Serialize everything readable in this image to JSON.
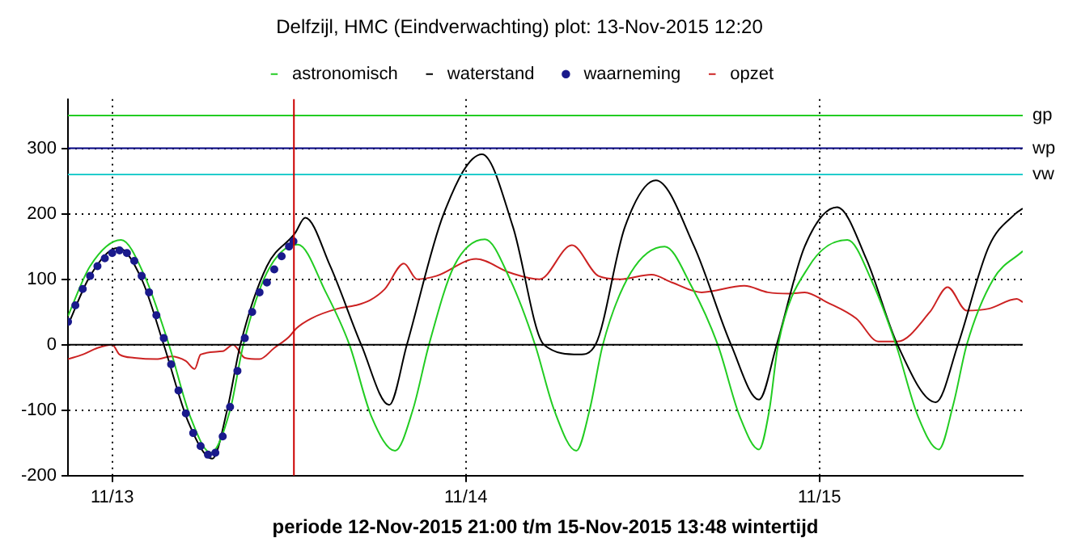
{
  "chart_data": {
    "type": "line",
    "title": "Delfzijl, HMC (Eindverwachting) plot: 13-Nov-2015 12:20",
    "xlabel": "periode 12-Nov-2015 21:00 t/m 15-Nov-2015 13:48 wintertijd",
    "xlim": [
      "2015-11-12T21:00",
      "2015-11-15T13:48"
    ],
    "xticks": [
      {
        "value": "2015-11-13T00:00",
        "label": "11/13"
      },
      {
        "value": "2015-11-14T00:00",
        "label": "11/14"
      },
      {
        "value": "2015-11-15T00:00",
        "label": "11/15"
      }
    ],
    "ylim": [
      -200,
      375
    ],
    "yticks": [
      -200,
      -100,
      0,
      100,
      200,
      300
    ],
    "grid": true,
    "legend": "top",
    "line_style": "solid",
    "series": [
      {
        "name": "astronomisch",
        "color": "#22cc22",
        "x": [
          "2015-11-12T21:00",
          "2015-11-12T22:30",
          "2015-11-13T00:36",
          "2015-11-13T02:12",
          "2015-11-13T03:51",
          "2015-11-13T05:18",
          "2015-11-13T06:42",
          "2015-11-13T08:00",
          "2015-11-13T08:54",
          "2015-11-13T10:30",
          "2015-11-13T12:36",
          "2015-11-13T14:30",
          "2015-11-13T16:06",
          "2015-11-13T17:36",
          "2015-11-13T19:12",
          "2015-11-13T20:24",
          "2015-11-13T21:30",
          "2015-11-13T23:12",
          "2015-11-14T01:18",
          "2015-11-14T03:00",
          "2015-11-14T04:42",
          "2015-11-14T06:00",
          "2015-11-14T07:30",
          "2015-11-14T08:24",
          "2015-11-14T09:18",
          "2015-11-14T11:12",
          "2015-11-14T13:30",
          "2015-11-14T15:18",
          "2015-11-14T17:06",
          "2015-11-14T18:36",
          "2015-11-14T19:54",
          "2015-11-14T20:36",
          "2015-11-14T21:12",
          "2015-11-14T23:18",
          "2015-11-15T01:54",
          "2015-11-15T03:36",
          "2015-11-15T05:12",
          "2015-11-15T06:42",
          "2015-11-15T08:06",
          "2015-11-15T09:06",
          "2015-11-15T10:00",
          "2015-11-15T11:48",
          "2015-11-15T13:48"
        ],
        "values": [
          44,
          120,
          160,
          105,
          0,
          -110,
          -165,
          -100,
          0,
          110,
          153,
          80,
          0,
          -110,
          -162,
          -100,
          0,
          120,
          161,
          100,
          0,
          -100,
          -162,
          -100,
          0,
          110,
          150,
          90,
          0,
          -110,
          -160,
          -100,
          0,
          120,
          160,
          95,
          0,
          -110,
          -160,
          -90,
          0,
          100,
          143
        ]
      },
      {
        "name": "waterstand",
        "color": "#000000",
        "x": [
          "2015-11-12T21:00",
          "2015-11-12T22:30",
          "2015-11-13T00:24",
          "2015-11-13T02:00",
          "2015-11-13T03:30",
          "2015-11-13T05:12",
          "2015-11-13T06:48",
          "2015-11-13T07:48",
          "2015-11-13T08:42",
          "2015-11-13T10:30",
          "2015-11-13T12:24",
          "2015-11-13T13:06",
          "2015-11-13T14:48",
          "2015-11-13T16:54",
          "2015-11-13T18:48",
          "2015-11-13T20:00",
          "2015-11-13T22:30",
          "2015-11-14T01:06",
          "2015-11-14T03:12",
          "2015-11-14T05:18",
          "2015-11-14T07:42",
          "2015-11-14T08:48",
          "2015-11-14T10:48",
          "2015-11-14T12:54",
          "2015-11-14T15:30",
          "2015-11-14T18:00",
          "2015-11-14T19:54",
          "2015-11-14T21:06",
          "2015-11-14T23:00",
          "2015-11-15T01:12",
          "2015-11-15T03:12",
          "2015-11-15T05:18",
          "2015-11-15T07:54",
          "2015-11-15T09:24",
          "2015-11-15T11:30",
          "2015-11-15T13:18",
          "2015-11-15T13:48"
        ],
        "values": [
          30,
          105,
          148,
          100,
          0,
          -120,
          -174,
          -100,
          0,
          120,
          170,
          194,
          120,
          0,
          -92,
          0,
          200,
          291,
          180,
          0,
          -15,
          0,
          180,
          251,
          150,
          0,
          -84,
          0,
          150,
          210,
          130,
          0,
          -88,
          0,
          150,
          200,
          208
        ]
      },
      {
        "name": "waarneming",
        "type": "scatter",
        "marker": "circle",
        "color": "#1a1a8c",
        "x": [
          "2015-11-12T21:00",
          "2015-11-12T21:30",
          "2015-11-12T22:00",
          "2015-11-12T22:30",
          "2015-11-12T23:00",
          "2015-11-12T23:30",
          "2015-11-13T00:00",
          "2015-11-13T00:30",
          "2015-11-13T01:00",
          "2015-11-13T01:30",
          "2015-11-13T02:00",
          "2015-11-13T02:30",
          "2015-11-13T03:00",
          "2015-11-13T03:30",
          "2015-11-13T04:00",
          "2015-11-13T04:30",
          "2015-11-13T05:00",
          "2015-11-13T05:30",
          "2015-11-13T06:00",
          "2015-11-13T06:30",
          "2015-11-13T07:00",
          "2015-11-13T07:30",
          "2015-11-13T08:00",
          "2015-11-13T08:30",
          "2015-11-13T09:00",
          "2015-11-13T09:30",
          "2015-11-13T10:00",
          "2015-11-13T10:30",
          "2015-11-13T11:00",
          "2015-11-13T11:30",
          "2015-11-13T12:00",
          "2015-11-13T12:18"
        ],
        "values": [
          35,
          60,
          85,
          105,
          120,
          132,
          140,
          144,
          140,
          128,
          105,
          80,
          45,
          10,
          -30,
          -70,
          -105,
          -135,
          -155,
          -168,
          -165,
          -140,
          -95,
          -40,
          10,
          50,
          80,
          95,
          115,
          135,
          150,
          158
        ]
      },
      {
        "name": "opzet",
        "color": "#cc2222",
        "x": [
          "2015-11-12T21:00",
          "2015-11-12T22:00",
          "2015-11-12T23:00",
          "2015-11-13T00:00",
          "2015-11-13T00:30",
          "2015-11-13T01:30",
          "2015-11-13T03:00",
          "2015-11-13T04:00",
          "2015-11-13T05:00",
          "2015-11-13T05:36",
          "2015-11-13T06:00",
          "2015-11-13T07:30",
          "2015-11-13T08:12",
          "2015-11-13T09:00",
          "2015-11-13T10:00",
          "2015-11-13T11:00",
          "2015-11-13T12:00",
          "2015-11-13T12:30",
          "2015-11-13T13:30",
          "2015-11-13T15:18",
          "2015-11-13T16:30",
          "2015-11-13T17:30",
          "2015-11-13T18:30",
          "2015-11-13T19:48",
          "2015-11-13T20:42",
          "2015-11-13T22:00",
          "2015-11-14T00:42",
          "2015-11-14T03:00",
          "2015-11-14T05:00",
          "2015-11-14T07:12",
          "2015-11-14T09:00",
          "2015-11-14T10:30",
          "2015-11-14T12:36",
          "2015-11-14T14:00",
          "2015-11-14T16:00",
          "2015-11-14T18:54",
          "2015-11-14T20:30",
          "2015-11-14T22:00",
          "2015-11-14T23:00",
          "2015-11-15T00:30",
          "2015-11-15T02:30",
          "2015-11-15T04:00",
          "2015-11-15T05:18",
          "2015-11-15T07:30",
          "2015-11-15T08:42",
          "2015-11-15T10:00",
          "2015-11-15T11:30",
          "2015-11-15T13:24",
          "2015-11-15T13:48"
        ],
        "values": [
          -22,
          -15,
          -5,
          0,
          -15,
          -20,
          -22,
          -18,
          -25,
          -37,
          -15,
          -10,
          0,
          -20,
          -22,
          -5,
          12,
          25,
          40,
          55,
          60,
          68,
          85,
          124,
          100,
          105,
          131,
          110,
          100,
          152,
          105,
          100,
          107,
          95,
          80,
          90,
          80,
          78,
          80,
          65,
          40,
          5,
          5,
          50,
          88,
          52,
          55,
          70,
          65
        ]
      }
    ],
    "ref_lines": [
      {
        "axis": "y",
        "value": 350,
        "label": "gp",
        "color": "#22cc22"
      },
      {
        "axis": "y",
        "value": 300,
        "label": "wp",
        "color": "#000080"
      },
      {
        "axis": "y",
        "value": 260,
        "label": "vw",
        "color": "#22cccc"
      },
      {
        "axis": "y",
        "value": 0,
        "color": "#000000"
      },
      {
        "axis": "x",
        "value": "2015-11-13T12:20",
        "color": "#cc0000"
      }
    ]
  }
}
